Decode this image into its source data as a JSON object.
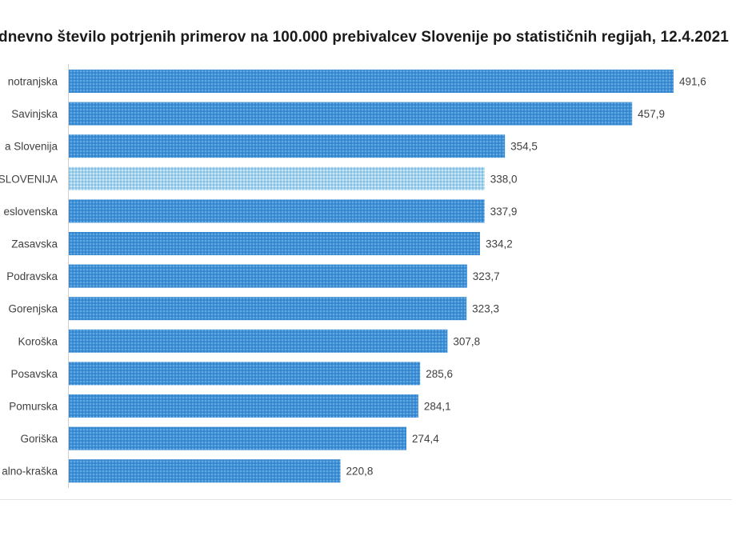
{
  "chart_data": {
    "type": "bar",
    "orientation": "horizontal",
    "title": "dnevno število potrjenih primerov na 100.000  prebivalcev Slovenije po statističnih regijah, 12.4.2021",
    "categories": [
      "notranjska",
      "Savinjska",
      "a Slovenija",
      "SLOVENIJA",
      "eslovenska",
      "Zasavska",
      "Podravska",
      "Gorenjska",
      "Koroška",
      "Posavska",
      "Pomurska",
      "Goriška",
      "alno-kraška"
    ],
    "values": [
      491.6,
      457.9,
      354.5,
      338.0,
      337.9,
      334.2,
      323.7,
      323.3,
      307.8,
      285.6,
      284.1,
      274.4,
      220.8
    ],
    "value_labels": [
      "491,6",
      "457,9",
      "354,5",
      "338,0",
      "337,9",
      "334,2",
      "323,7",
      "323,3",
      "307,8",
      "285,6",
      "284,1",
      "274,4",
      "220,8"
    ],
    "highlight_category": "SLOVENIJA",
    "xlim": [
      0,
      500
    ],
    "grid": false,
    "legend": "none",
    "colors": {
      "bar": "#3d8fd6",
      "bar_highlight": "#9ccfe8",
      "text": "#404040"
    }
  }
}
